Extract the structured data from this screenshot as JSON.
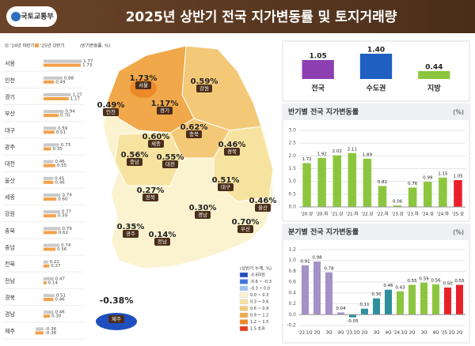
{
  "header": {
    "logo": "국토교통부",
    "title": "2025년 상반기 전국 지가변동률 및 토지거래량"
  },
  "chart_data": [
    {
      "type": "hbar",
      "unit_label": "(반기변동률, %)",
      "categories": [
        "서울",
        "인천",
        "경기",
        "부산",
        "대구",
        "광주",
        "대전",
        "울산",
        "세종",
        "강원",
        "충북",
        "충남",
        "전북",
        "전남",
        "경북",
        "경남",
        "제주"
      ],
      "series": [
        {
          "name": "'24년 하반기",
          "color": "#c9c9c9",
          "values": [
            1.77,
            0.88,
            1.27,
            0.94,
            0.59,
            0.73,
            0.46,
            0.45,
            0.79,
            0.77,
            0.79,
            0.74,
            0.21,
            0.47,
            0.51,
            0.46,
            -0.36
          ],
          "value_labels": [
            "1.77",
            "0.88",
            "1.27",
            "0.94",
            "0.59",
            "0.73",
            "0.46",
            "0.45",
            "0.79",
            "0.77",
            "0.79",
            "0.74",
            "0.21",
            "0.47",
            "0.51",
            "0.46",
            "-0.36"
          ]
        },
        {
          "name": "'25년 상반기",
          "color": "#f4a14a",
          "values": [
            1.73,
            0.49,
            1.17,
            0.7,
            0.51,
            0.35,
            0.55,
            0.46,
            0.6,
            0.59,
            0.62,
            0.56,
            0.27,
            0.14,
            0.46,
            0.3,
            -0.38
          ],
          "value_labels": [
            "1.73",
            "0.49",
            "1.17",
            "0.70",
            "0.51",
            "0.35",
            "0.55",
            "0.46",
            "0.60",
            "0.59",
            "0.62",
            "0.56",
            "0.27",
            "0.14",
            "0.46",
            "0.30",
            "-0.38"
          ]
        }
      ],
      "xlim": [
        -0.4,
        1.8
      ]
    },
    {
      "type": "bar",
      "categories": [
        "전국",
        "수도권",
        "지방"
      ],
      "values": [
        1.05,
        1.4,
        0.44
      ],
      "value_labels": [
        "1.05",
        "1.40",
        "0.44"
      ],
      "colors": [
        "#8b3fb0",
        "#1f5fbf",
        "#8cc63f"
      ],
      "ylim": [
        0,
        1.4
      ]
    },
    {
      "type": "bar",
      "title": "반기별 전국 지가변동률",
      "unit_label": "(%)",
      "categories": [
        "'20.상",
        "'20.하",
        "'21.상",
        "'21.하",
        "'22.상",
        "'22.하",
        "'23.상",
        "'23.하",
        "'24.상",
        "'24.하",
        "'25.상"
      ],
      "values": [
        1.72,
        1.92,
        2.02,
        2.11,
        1.89,
        0.82,
        0.06,
        0.76,
        0.99,
        1.15,
        1.05
      ],
      "value_labels": [
        "1.72",
        "1.92",
        "2.02",
        "2.11",
        "1.89",
        "0.82",
        "0.06",
        "0.76",
        "0.99",
        "1.15",
        "1.05"
      ],
      "colors": [
        "#8cc63f",
        "#8cc63f",
        "#8cc63f",
        "#8cc63f",
        "#8cc63f",
        "#8cc63f",
        "#8cc63f",
        "#8cc63f",
        "#8cc63f",
        "#8cc63f",
        "#e8202a"
      ],
      "ylim": [
        0,
        3
      ],
      "yticks": [
        {
          "value": 0,
          "label": "0.0"
        },
        {
          "value": 0.5,
          "label": "0.5"
        },
        {
          "value": 1,
          "label": "1.0"
        },
        {
          "value": 1.5,
          "label": "1.5"
        },
        {
          "value": 2,
          "label": "2.0"
        },
        {
          "value": 2.5,
          "label": "2.5"
        },
        {
          "value": 3,
          "label": "3.0"
        }
      ],
      "grid": true
    },
    {
      "type": "bar",
      "title": "분기별 전국 지가변동률",
      "unit_label": "(%)",
      "categories": [
        "'22.1Q",
        "2Q",
        "3Q",
        "4Q",
        "'23.1Q",
        "2Q",
        "3Q",
        "4Q",
        "'24.1Q",
        "2Q",
        "3Q",
        "4Q",
        "'25.1Q",
        "2Q"
      ],
      "values": [
        0.91,
        0.98,
        0.78,
        0.04,
        -0.05,
        0.11,
        0.3,
        0.46,
        0.43,
        0.55,
        0.59,
        0.56,
        0.5,
        0.55
      ],
      "value_labels": [
        "0.91",
        "0.98",
        "0.78",
        "0.04",
        "-0.05",
        "0.11",
        "0.30",
        "0.46",
        "0.43",
        "0.55",
        "0.59",
        "0.56",
        "0.50",
        "0.55"
      ],
      "colors": [
        "#a590c8",
        "#a590c8",
        "#a590c8",
        "#a590c8",
        "#2f8f9d",
        "#2f8f9d",
        "#2f8f9d",
        "#2f8f9d",
        "#8cc63f",
        "#8cc63f",
        "#8cc63f",
        "#8cc63f",
        "#e8202a",
        "#e8202a"
      ],
      "ylim": [
        -0.2,
        1.2
      ],
      "yticks": [
        {
          "value": -0.2,
          "label": "-0.2"
        },
        {
          "value": 0,
          "label": "0.0"
        },
        {
          "value": 0.2,
          "label": "0.2"
        },
        {
          "value": 0.4,
          "label": "0.4"
        },
        {
          "value": 0.6,
          "label": "0.6"
        },
        {
          "value": 0.8,
          "label": "0.8"
        },
        {
          "value": 1,
          "label": "1.0"
        },
        {
          "value": 1.2,
          "label": "1.2"
        }
      ],
      "grid": true
    }
  ],
  "map": {
    "regions": [
      {
        "name": "서울",
        "label": "1.73%"
      },
      {
        "name": "인천",
        "label": "0.49%"
      },
      {
        "name": "경기",
        "label": "1.17%"
      },
      {
        "name": "강원",
        "label": "0.59%"
      },
      {
        "name": "충북",
        "label": "0.62%"
      },
      {
        "name": "세종",
        "label": "0.60%"
      },
      {
        "name": "충남",
        "label": "0.56%"
      },
      {
        "name": "대전",
        "label": "0.55%"
      },
      {
        "name": "경북",
        "label": "0.46%"
      },
      {
        "name": "대구",
        "label": "0.51%"
      },
      {
        "name": "전북",
        "label": "0.27%"
      },
      {
        "name": "울산",
        "label": "0.46%"
      },
      {
        "name": "경남",
        "label": "0.30%"
      },
      {
        "name": "부산",
        "label": "0.70%"
      },
      {
        "name": "광주",
        "label": "0.35%"
      },
      {
        "name": "전남",
        "label": "0.14%"
      },
      {
        "name": "제주",
        "label": "-0.38%"
      }
    ],
    "legend": {
      "title": "(상반기 누계, %)",
      "items": [
        {
          "label": "-0.6미만",
          "color": "#1f4fbf"
        },
        {
          "label": "-0.6 ~ -0.3",
          "color": "#3b78d8"
        },
        {
          "label": "-0.3 ~ 0.0",
          "color": "#9cc3f0"
        },
        {
          "label": "0.0 ~ 0.3",
          "color": "#fbf3d0"
        },
        {
          "label": "0.3 ~ 0.6",
          "color": "#f7e3a0"
        },
        {
          "label": "0.6 ~ 0.9",
          "color": "#f3c978"
        },
        {
          "label": "0.9 ~ 1.2",
          "color": "#f0a84a"
        },
        {
          "label": "1.2 ~ 1.5",
          "color": "#ec8a2a"
        },
        {
          "label": "1.5 초과",
          "color": "#e63c1e"
        }
      ]
    }
  }
}
